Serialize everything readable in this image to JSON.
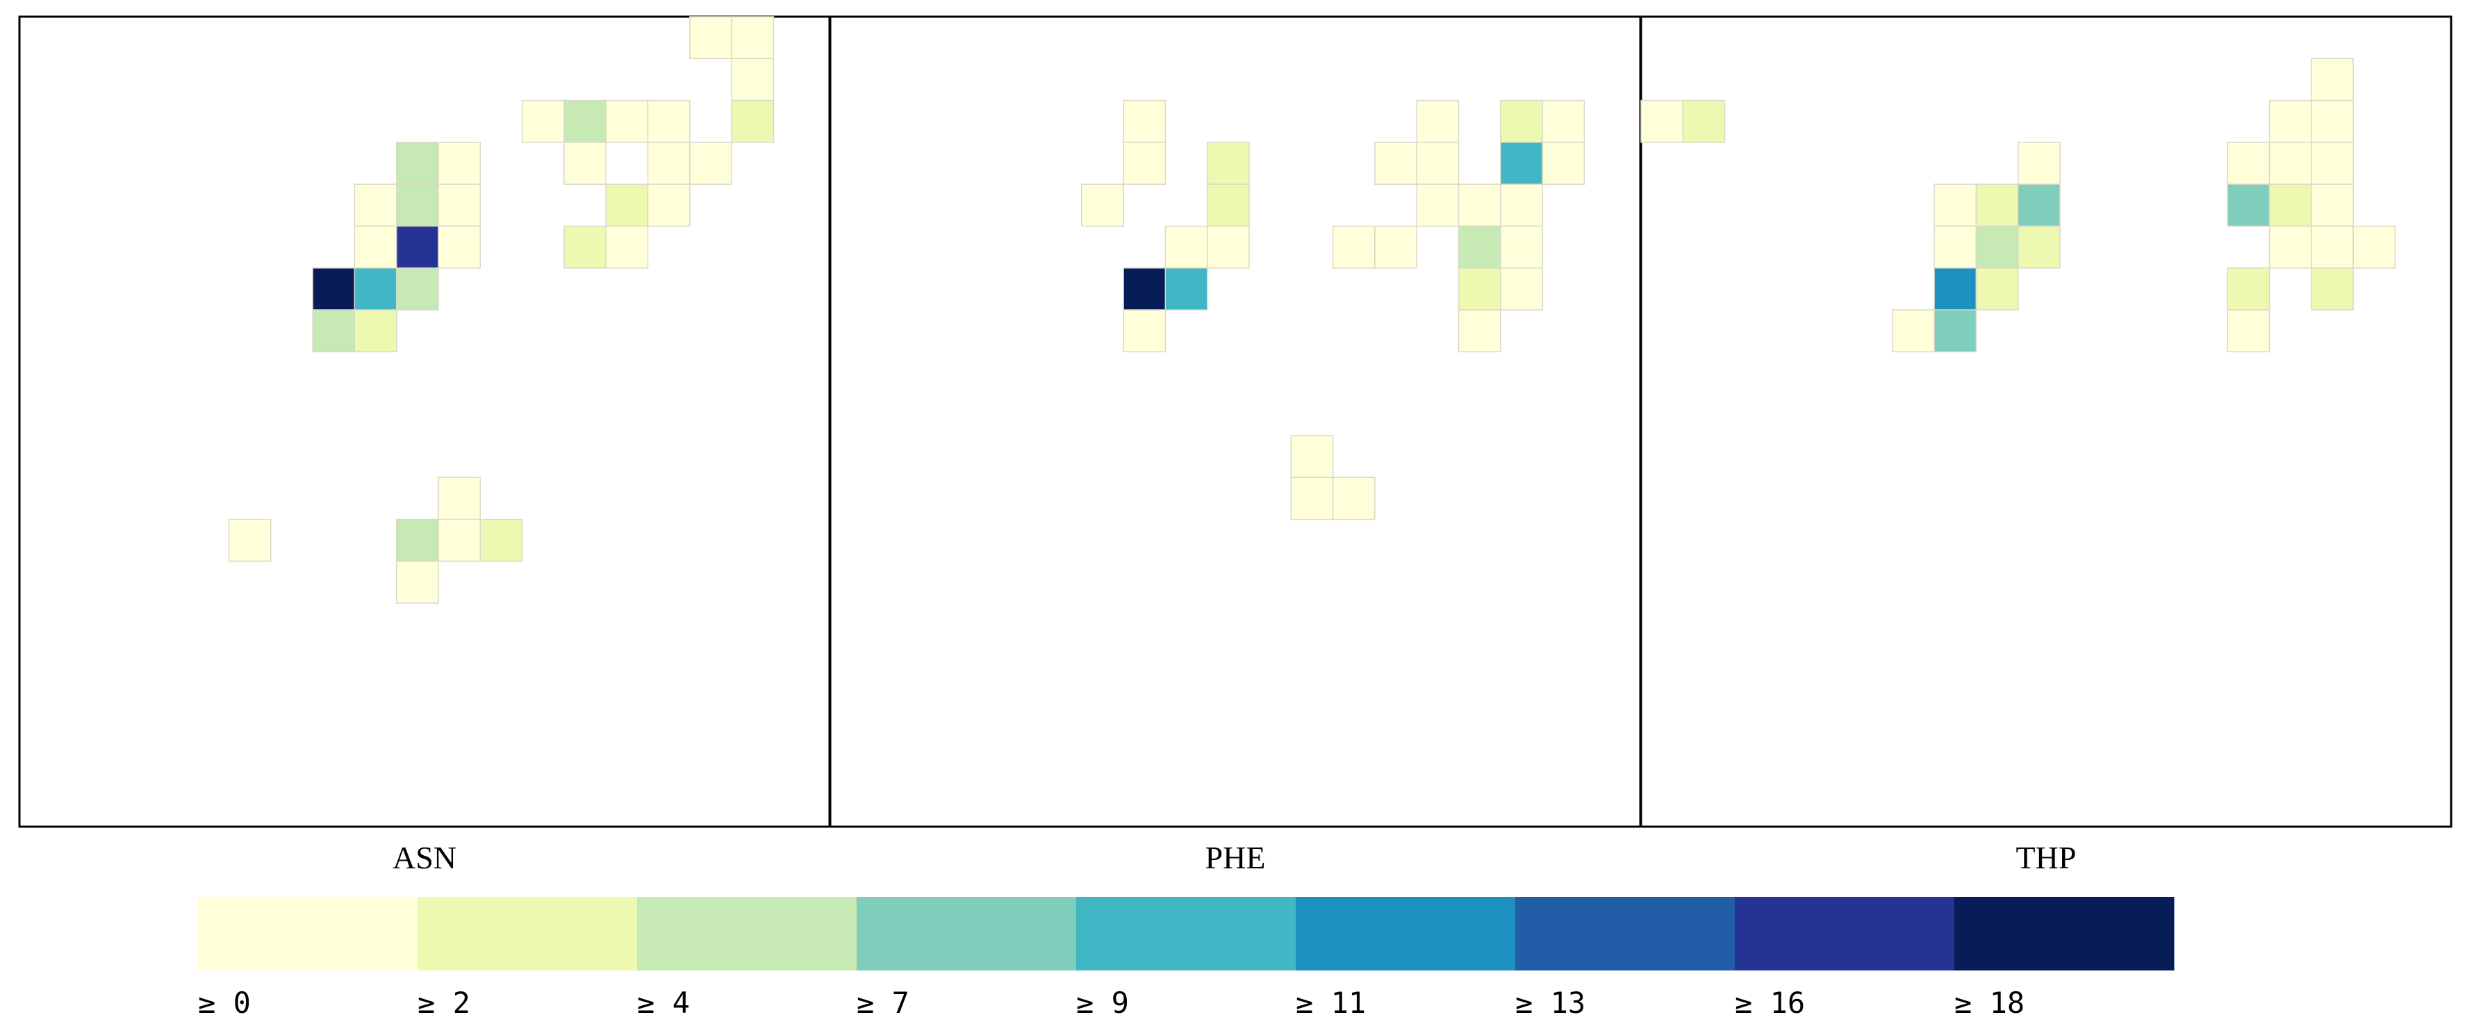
{
  "chart_data": {
    "type": "heatmap",
    "grid": {
      "columns": 19,
      "rows": 19
    },
    "panels": [
      {
        "title": "ASN",
        "cells": [
          {
            "col": 16,
            "row": 0,
            "value": 0.5
          },
          {
            "col": 17,
            "row": 0,
            "value": 0.5
          },
          {
            "col": 17,
            "row": 1,
            "value": 0.5
          },
          {
            "col": 12,
            "row": 2,
            "value": 0.5
          },
          {
            "col": 13,
            "row": 2,
            "value": 4.5
          },
          {
            "col": 14,
            "row": 2,
            "value": 0.5
          },
          {
            "col": 15,
            "row": 2,
            "value": 0.5
          },
          {
            "col": 17,
            "row": 2,
            "value": 2.5
          },
          {
            "col": 9,
            "row": 3,
            "value": 4.5
          },
          {
            "col": 10,
            "row": 3,
            "value": 0.5
          },
          {
            "col": 13,
            "row": 3,
            "value": 0.5
          },
          {
            "col": 15,
            "row": 3,
            "value": 0.5
          },
          {
            "col": 16,
            "row": 3,
            "value": 0.5
          },
          {
            "col": 8,
            "row": 4,
            "value": 0.5
          },
          {
            "col": 9,
            "row": 4,
            "value": 4.5
          },
          {
            "col": 10,
            "row": 4,
            "value": 0.5
          },
          {
            "col": 14,
            "row": 4,
            "value": 2.5
          },
          {
            "col": 15,
            "row": 4,
            "value": 0.5
          },
          {
            "col": 8,
            "row": 5,
            "value": 0.5
          },
          {
            "col": 9,
            "row": 5,
            "value": 16.5
          },
          {
            "col": 10,
            "row": 5,
            "value": 0.5
          },
          {
            "col": 13,
            "row": 5,
            "value": 2.5
          },
          {
            "col": 14,
            "row": 5,
            "value": 0.5
          },
          {
            "col": 7,
            "row": 6,
            "value": 19
          },
          {
            "col": 8,
            "row": 6,
            "value": 9.5
          },
          {
            "col": 9,
            "row": 6,
            "value": 4.5
          },
          {
            "col": 7,
            "row": 7,
            "value": 4.5
          },
          {
            "col": 8,
            "row": 7,
            "value": 2.5
          },
          {
            "col": 10,
            "row": 11,
            "value": 0.5
          },
          {
            "col": 5,
            "row": 12,
            "value": 0.5
          },
          {
            "col": 9,
            "row": 12,
            "value": 4.5
          },
          {
            "col": 10,
            "row": 12,
            "value": 0.5
          },
          {
            "col": 11,
            "row": 12,
            "value": 2.5
          },
          {
            "col": 9,
            "row": 13,
            "value": 0.5
          }
        ]
      },
      {
        "title": "PHE",
        "cells": [
          {
            "col": 7,
            "row": 2,
            "value": 0.5
          },
          {
            "col": 14,
            "row": 2,
            "value": 0.5
          },
          {
            "col": 16,
            "row": 2,
            "value": 2.5
          },
          {
            "col": 17,
            "row": 2,
            "value": 0.5
          },
          {
            "col": 7,
            "row": 3,
            "value": 0.5
          },
          {
            "col": 9,
            "row": 3,
            "value": 2.5
          },
          {
            "col": 13,
            "row": 3,
            "value": 0.5
          },
          {
            "col": 14,
            "row": 3,
            "value": 0.5
          },
          {
            "col": 16,
            "row": 3,
            "value": 9.5
          },
          {
            "col": 17,
            "row": 3,
            "value": 0.5
          },
          {
            "col": 6,
            "row": 4,
            "value": 0.5
          },
          {
            "col": 9,
            "row": 4,
            "value": 2.5
          },
          {
            "col": 14,
            "row": 4,
            "value": 0.5
          },
          {
            "col": 15,
            "row": 4,
            "value": 0.5
          },
          {
            "col": 16,
            "row": 4,
            "value": 0.5
          },
          {
            "col": 8,
            "row": 5,
            "value": 0.5
          },
          {
            "col": 9,
            "row": 5,
            "value": 0.5
          },
          {
            "col": 12,
            "row": 5,
            "value": 0.5
          },
          {
            "col": 13,
            "row": 5,
            "value": 0.5
          },
          {
            "col": 15,
            "row": 5,
            "value": 4.5
          },
          {
            "col": 16,
            "row": 5,
            "value": 0.5
          },
          {
            "col": 7,
            "row": 6,
            "value": 19
          },
          {
            "col": 8,
            "row": 6,
            "value": 9.5
          },
          {
            "col": 15,
            "row": 6,
            "value": 2.5
          },
          {
            "col": 16,
            "row": 6,
            "value": 0.5
          },
          {
            "col": 7,
            "row": 7,
            "value": 0.5
          },
          {
            "col": 15,
            "row": 7,
            "value": 0.5
          },
          {
            "col": 11,
            "row": 10,
            "value": 0.5
          },
          {
            "col": 11,
            "row": 11,
            "value": 0.5
          },
          {
            "col": 12,
            "row": 11,
            "value": 0.5
          }
        ]
      },
      {
        "title": "THP",
        "cells": [
          {
            "col": 16,
            "row": 1,
            "value": 0.5
          },
          {
            "col": 0,
            "row": 2,
            "value": 0.5
          },
          {
            "col": 1,
            "row": 2,
            "value": 2.5
          },
          {
            "col": 15,
            "row": 2,
            "value": 0.5
          },
          {
            "col": 16,
            "row": 2,
            "value": 0.5
          },
          {
            "col": 9,
            "row": 3,
            "value": 0.5
          },
          {
            "col": 14,
            "row": 3,
            "value": 0.5
          },
          {
            "col": 15,
            "row": 3,
            "value": 0.5
          },
          {
            "col": 16,
            "row": 3,
            "value": 0.5
          },
          {
            "col": 7,
            "row": 4,
            "value": 0.5
          },
          {
            "col": 8,
            "row": 4,
            "value": 2.5
          },
          {
            "col": 9,
            "row": 4,
            "value": 7.5
          },
          {
            "col": 14,
            "row": 4,
            "value": 7.5
          },
          {
            "col": 15,
            "row": 4,
            "value": 2.5
          },
          {
            "col": 16,
            "row": 4,
            "value": 0.5
          },
          {
            "col": 7,
            "row": 5,
            "value": 0.5
          },
          {
            "col": 8,
            "row": 5,
            "value": 4.5
          },
          {
            "col": 9,
            "row": 5,
            "value": 2.5
          },
          {
            "col": 15,
            "row": 5,
            "value": 0.5
          },
          {
            "col": 16,
            "row": 5,
            "value": 0.5
          },
          {
            "col": 17,
            "row": 5,
            "value": 0.5
          },
          {
            "col": 7,
            "row": 6,
            "value": 11.5
          },
          {
            "col": 8,
            "row": 6,
            "value": 2.5
          },
          {
            "col": 14,
            "row": 6,
            "value": 2.5
          },
          {
            "col": 16,
            "row": 6,
            "value": 2.5
          },
          {
            "col": 6,
            "row": 7,
            "value": 0.5
          },
          {
            "col": 7,
            "row": 7,
            "value": 7.5
          },
          {
            "col": 14,
            "row": 7,
            "value": 0.5
          }
        ]
      }
    ],
    "colorbar": {
      "thresholds": [
        0,
        2,
        4,
        7,
        9,
        11,
        13,
        16,
        18
      ],
      "labels": [
        "≥ 0",
        "≥ 2",
        "≥ 4",
        "≥ 7",
        "≥ 9",
        "≥ 11",
        "≥ 13",
        "≥ 16",
        "≥ 18"
      ],
      "colors": [
        "#ffffd9",
        "#edf8b1",
        "#c7e9b4",
        "#7fcdbb",
        "#41b6c4",
        "#1d91c0",
        "#225ea8",
        "#253494",
        "#081d58"
      ]
    }
  }
}
